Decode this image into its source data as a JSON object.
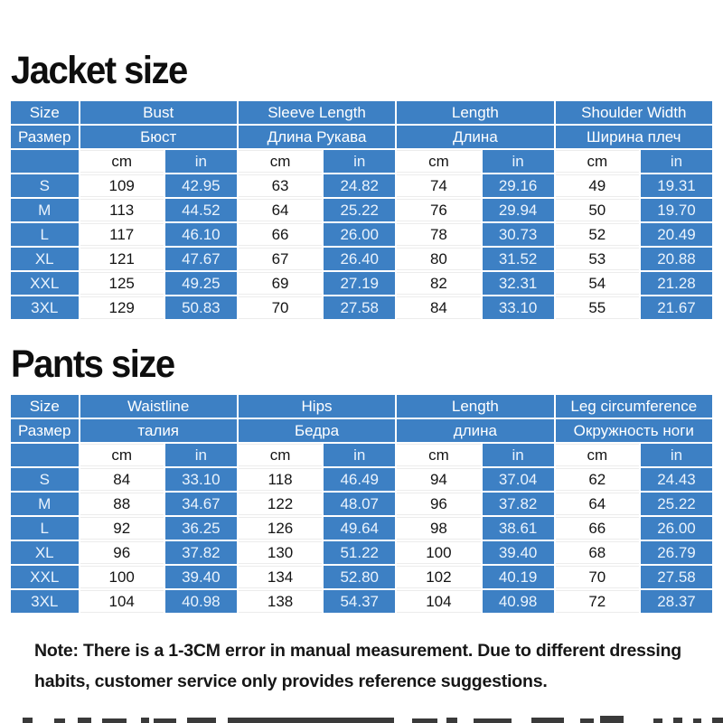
{
  "palette": {
    "table_blue": "#3d80c4",
    "header_text": "#ffffff",
    "text_on_blue": "#eaf3fd",
    "text_on_white": "#141414"
  },
  "chart_data": [
    {
      "type": "table",
      "title": "Jacket size",
      "size_header": {
        "en": "Size",
        "ru": "Размер"
      },
      "units": {
        "cm": "cm",
        "in": "in"
      },
      "columns": [
        {
          "en": "Bust",
          "ru": "Бюст"
        },
        {
          "en": "Sleeve Length",
          "ru": "Длина Рукава"
        },
        {
          "en": "Length",
          "ru": "Длина"
        },
        {
          "en": "Shoulder Width",
          "ru": "Ширина плеч"
        }
      ],
      "rows": [
        {
          "size": "S",
          "cm_in": [
            [
              "109",
              "42.95"
            ],
            [
              "63",
              "24.82"
            ],
            [
              "74",
              "29.16"
            ],
            [
              "49",
              "19.31"
            ]
          ]
        },
        {
          "size": "M",
          "cm_in": [
            [
              "113",
              "44.52"
            ],
            [
              "64",
              "25.22"
            ],
            [
              "76",
              "29.94"
            ],
            [
              "50",
              "19.70"
            ]
          ]
        },
        {
          "size": "L",
          "cm_in": [
            [
              "117",
              "46.10"
            ],
            [
              "66",
              "26.00"
            ],
            [
              "78",
              "30.73"
            ],
            [
              "52",
              "20.49"
            ]
          ]
        },
        {
          "size": "XL",
          "cm_in": [
            [
              "121",
              "47.67"
            ],
            [
              "67",
              "26.40"
            ],
            [
              "80",
              "31.52"
            ],
            [
              "53",
              "20.88"
            ]
          ]
        },
        {
          "size": "XXL",
          "cm_in": [
            [
              "125",
              "49.25"
            ],
            [
              "69",
              "27.19"
            ],
            [
              "82",
              "32.31"
            ],
            [
              "54",
              "21.28"
            ]
          ]
        },
        {
          "size": "3XL",
          "cm_in": [
            [
              "129",
              "50.83"
            ],
            [
              "70",
              "27.58"
            ],
            [
              "84",
              "33.10"
            ],
            [
              "55",
              "21.67"
            ]
          ]
        }
      ]
    },
    {
      "type": "table",
      "title": "Pants size",
      "size_header": {
        "en": "Size",
        "ru": "Размер"
      },
      "units": {
        "cm": "cm",
        "in": "in"
      },
      "columns": [
        {
          "en": "Waistline",
          "ru": "талия"
        },
        {
          "en": "Hips",
          "ru": "Бедра"
        },
        {
          "en": "Length",
          "ru": "длина"
        },
        {
          "en": "Leg circumference",
          "ru": "Окружность ноги"
        }
      ],
      "rows": [
        {
          "size": "S",
          "cm_in": [
            [
              "84",
              "33.10"
            ],
            [
              "118",
              "46.49"
            ],
            [
              "94",
              "37.04"
            ],
            [
              "62",
              "24.43"
            ]
          ]
        },
        {
          "size": "M",
          "cm_in": [
            [
              "88",
              "34.67"
            ],
            [
              "122",
              "48.07"
            ],
            [
              "96",
              "37.82"
            ],
            [
              "64",
              "25.22"
            ]
          ]
        },
        {
          "size": "L",
          "cm_in": [
            [
              "92",
              "36.25"
            ],
            [
              "126",
              "49.64"
            ],
            [
              "98",
              "38.61"
            ],
            [
              "66",
              "26.00"
            ]
          ]
        },
        {
          "size": "XL",
          "cm_in": [
            [
              "96",
              "37.82"
            ],
            [
              "130",
              "51.22"
            ],
            [
              "100",
              "39.40"
            ],
            [
              "68",
              "26.79"
            ]
          ]
        },
        {
          "size": "XXL",
          "cm_in": [
            [
              "100",
              "39.40"
            ],
            [
              "134",
              "52.80"
            ],
            [
              "102",
              "40.19"
            ],
            [
              "70",
              "27.58"
            ]
          ]
        },
        {
          "size": "3XL",
          "cm_in": [
            [
              "104",
              "40.98"
            ],
            [
              "138",
              "54.37"
            ],
            [
              "104",
              "40.98"
            ],
            [
              "72",
              "28.37"
            ]
          ]
        }
      ]
    }
  ],
  "note": "Note: There is a 1-3CM error in manual measurement. Due to different dressing habits, customer service only provides reference suggestions."
}
